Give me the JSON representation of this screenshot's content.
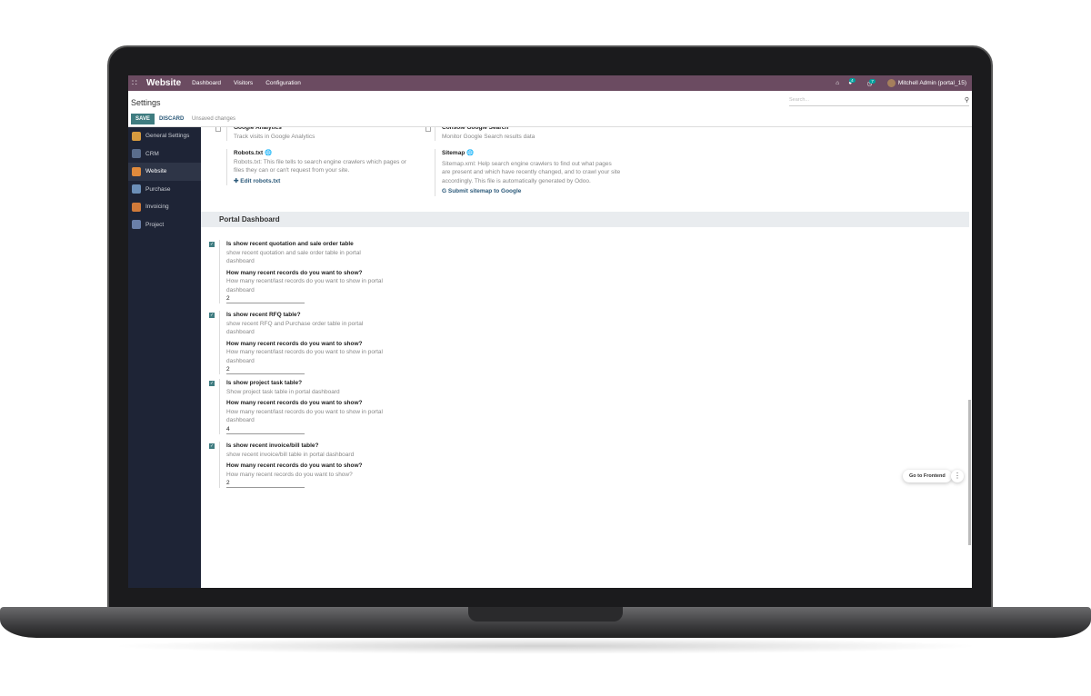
{
  "navbar": {
    "app": "Website",
    "menus": [
      "Dashboard",
      "Visitors",
      "Configuration"
    ],
    "messages_count": "4",
    "activity_count": "7",
    "user": "Mitchell Admin (portal_15)"
  },
  "control": {
    "title": "Settings",
    "save": "SAVE",
    "discard": "DISCARD",
    "status": "Unsaved changes",
    "search_placeholder": "Search..."
  },
  "sidebar": {
    "items": [
      {
        "label": "General Settings",
        "color": "#d79b3f"
      },
      {
        "label": "CRM",
        "color": "#5a6d8c"
      },
      {
        "label": "Website",
        "color": "#e08a3c"
      },
      {
        "label": "Purchase",
        "color": "#6c8fb8"
      },
      {
        "label": "Invoicing",
        "color": "#d07a3a"
      },
      {
        "label": "Project",
        "color": "#6a7fa8"
      }
    ]
  },
  "website": {
    "ga_title": "Google Analytics",
    "ga_desc": "Track visits in Google Analytics",
    "gsc_title": "Console Google Search",
    "gsc_desc": "Monitor Google Search results data",
    "robots_title": "Robots.txt",
    "robots_desc": "Robots.txt: This file tells to search engine crawlers which pages or files they can or can't request from your site.",
    "robots_link": "Edit robots.txt",
    "sitemap_title": "Sitemap",
    "sitemap_desc": "Sitemap.xml: Help search engine crawlers to find out what pages are present and which have recently changed, and to crawl your site accordingly. This file is automatically generated by Odoo.",
    "sitemap_link": "Submit sitemap to Google"
  },
  "portal": {
    "section": "Portal Dashboard",
    "settings": [
      {
        "title": "Is show recent quotation and sale order table",
        "desc": "show recent quotation and sale order table in portal dashboard",
        "checked": true,
        "q": "How many recent records do you want to show?",
        "qdesc": "How many recent/last records do you want to show in portal dashboard",
        "value": "2"
      },
      {
        "title": "Is show recent RFQ table?",
        "desc": "show recent RFQ and Purchase order table in portal dashboard",
        "checked": true,
        "q": "How many recent records do you want to show?",
        "qdesc": "How many recent/last records do you want to show in portal dashboard",
        "value": "2"
      },
      {
        "title": "Is show project task table?",
        "desc": "Show project task table in portal dashboard",
        "checked": true,
        "q": "How many recent records do you want to show?",
        "qdesc": "How many recent/last records do you want to show in portal dashboard",
        "value": "4"
      },
      {
        "title": "Is show recent invoice/bill table?",
        "desc": "show recent invoice/bill table in portal dashboard",
        "checked": true,
        "q": "How many recent records do you want to show?",
        "qdesc": "How many recent records do you want to show?",
        "value": "2"
      }
    ]
  },
  "floating": {
    "go_frontend": "Go to Frontend"
  }
}
